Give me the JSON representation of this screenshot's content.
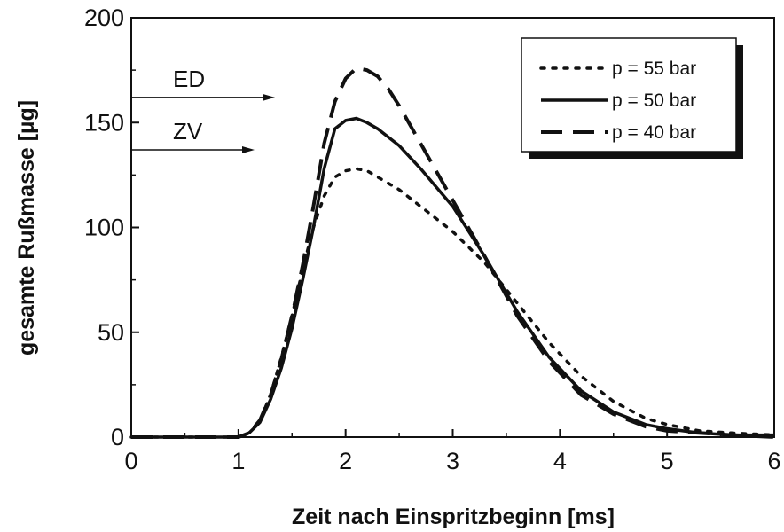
{
  "chart_data": {
    "type": "line",
    "xlabel": "Zeit nach Einspritzbeginn  [ms]",
    "ylabel": "gesamte Rußmasse  [µg]",
    "xlim": [
      0,
      6
    ],
    "ylim": [
      0,
      200
    ],
    "xticks": [
      0,
      1,
      2,
      3,
      4,
      5,
      6
    ],
    "yticks": [
      0,
      50,
      100,
      150,
      200
    ],
    "grid": false,
    "legend_position": "top-right",
    "series": [
      {
        "name": "p = 55 bar",
        "style": "dotted",
        "color": "#111111",
        "x": [
          0,
          1.0,
          1.1,
          1.2,
          1.3,
          1.4,
          1.5,
          1.6,
          1.7,
          1.8,
          1.9,
          2.0,
          2.1,
          2.2,
          2.3,
          2.5,
          2.7,
          3.0,
          3.3,
          3.6,
          3.9,
          4.2,
          4.5,
          4.8,
          5.0,
          5.3,
          5.6,
          6.0
        ],
        "y": [
          0,
          0,
          2,
          8,
          20,
          38,
          58,
          80,
          100,
          115,
          124,
          127,
          128,
          127,
          124,
          118,
          110,
          98,
          83,
          64,
          45,
          29,
          17,
          9,
          6,
          3,
          2,
          1
        ]
      },
      {
        "name": "p = 50 bar",
        "style": "solid",
        "color": "#111111",
        "x": [
          0,
          1.0,
          1.1,
          1.2,
          1.3,
          1.4,
          1.5,
          1.6,
          1.7,
          1.8,
          1.9,
          2.0,
          2.1,
          2.2,
          2.3,
          2.5,
          2.7,
          3.0,
          3.3,
          3.6,
          3.9,
          4.2,
          4.5,
          4.8,
          5.0,
          5.3,
          5.6,
          6.0
        ],
        "y": [
          0,
          0,
          2,
          7,
          18,
          33,
          52,
          75,
          100,
          128,
          147,
          151,
          152,
          150,
          147,
          139,
          128,
          110,
          86,
          60,
          38,
          22,
          12,
          6,
          4,
          2,
          1,
          1
        ]
      },
      {
        "name": "p = 40 bar",
        "style": "dashed",
        "color": "#111111",
        "x": [
          0,
          1.0,
          1.1,
          1.2,
          1.3,
          1.4,
          1.5,
          1.6,
          1.7,
          1.8,
          1.9,
          2.0,
          2.1,
          2.2,
          2.3,
          2.4,
          2.5,
          2.7,
          3.0,
          3.3,
          3.6,
          3.9,
          4.2,
          4.5,
          4.8,
          5.0,
          5.3,
          5.6,
          6.0
        ],
        "y": [
          0,
          0,
          2,
          8,
          20,
          37,
          58,
          82,
          110,
          140,
          160,
          171,
          176,
          175,
          172,
          166,
          158,
          140,
          113,
          86,
          58,
          36,
          20,
          11,
          5,
          3,
          2,
          1,
          0
        ]
      }
    ],
    "annotations": [
      {
        "text": "ED",
        "y": 162
      },
      {
        "text": "ZV",
        "y": 137
      }
    ]
  }
}
